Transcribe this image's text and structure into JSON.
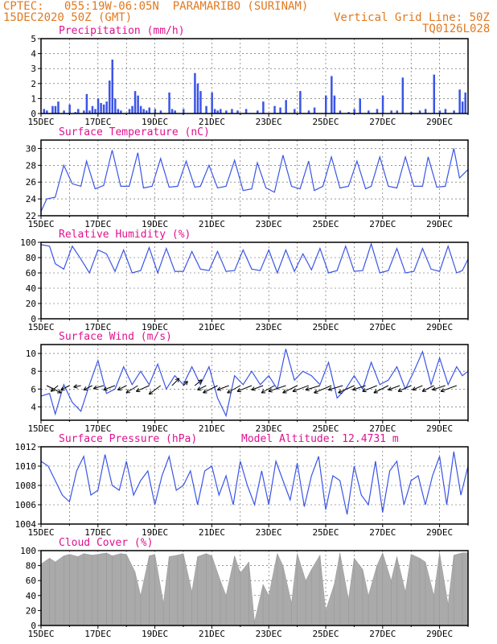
{
  "header": {
    "line1": "CPTEC:   055:19W-06:05N  PARAMARIBO (SURINAM)",
    "line2": "15DEC2020 50Z (GMT)",
    "grid_note": "Vertical Grid Line: 50Z",
    "code": "TQ0126L028"
  },
  "colors": {
    "header": "#e07a22",
    "title": "#e0118f",
    "series": "#3b55e6",
    "cloud": "#aaaaaa",
    "grid": "#555555"
  },
  "chart_data": [
    {
      "type": "bar",
      "title": "Precipitation (mm/h)",
      "x_tick_labels": [
        "15DEC",
        "17DEC",
        "19DEC",
        "21DEC",
        "23DEC",
        "25DEC",
        "27DEC",
        "29DEC"
      ],
      "x_range_days": [
        0,
        15
      ],
      "ylim": [
        0,
        5
      ],
      "yticks": [
        0,
        1,
        2,
        3,
        4,
        5
      ],
      "grid": true,
      "x_days": [
        0.1,
        0.2,
        0.4,
        0.5,
        0.6,
        0.8,
        1.0,
        1.2,
        1.3,
        1.5,
        1.6,
        1.7,
        1.8,
        1.9,
        2.0,
        2.1,
        2.2,
        2.3,
        2.4,
        2.5,
        2.6,
        2.7,
        2.8,
        3.1,
        3.2,
        3.3,
        3.4,
        3.5,
        3.6,
        3.7,
        3.8,
        4.0,
        4.2,
        4.5,
        4.6,
        4.7,
        5.0,
        5.4,
        5.5,
        5.6,
        5.8,
        6.0,
        6.1,
        6.2,
        6.3,
        6.5,
        6.7,
        6.9,
        7.2,
        7.6,
        7.8,
        8.2,
        8.4,
        8.6,
        8.9,
        9.1,
        9.4,
        9.6,
        10.0,
        10.2,
        10.3,
        10.5,
        10.8,
        11.0,
        11.2,
        11.5,
        11.8,
        12.0,
        12.3,
        12.5,
        12.7,
        13.0,
        13.3,
        13.5,
        13.8,
        14.0,
        14.2,
        14.5,
        14.7,
        14.8,
        14.9
      ],
      "values": [
        0.3,
        0.2,
        0.5,
        0.5,
        0.8,
        0.2,
        0.6,
        0.1,
        0.3,
        0.2,
        1.3,
        0.2,
        0.5,
        0.3,
        1.0,
        0.7,
        0.6,
        0.8,
        2.2,
        3.6,
        1.0,
        0.3,
        0.2,
        0.3,
        0.5,
        1.5,
        1.2,
        0.5,
        0.3,
        0.2,
        0.4,
        0.3,
        0.2,
        1.4,
        0.3,
        0.2,
        0.3,
        2.7,
        2.0,
        1.5,
        0.5,
        1.4,
        0.3,
        0.2,
        0.3,
        0.2,
        0.3,
        0.2,
        0.3,
        0.2,
        0.8,
        0.5,
        0.4,
        0.9,
        0.3,
        1.5,
        0.2,
        0.4,
        1.2,
        2.5,
        1.2,
        0.2,
        0.1,
        0.3,
        1.0,
        0.2,
        0.3,
        1.2,
        0.2,
        0.2,
        2.4,
        0.1,
        0.2,
        0.3,
        2.6,
        0.2,
        0.3,
        0.2,
        1.6,
        0.8,
        1.4
      ]
    },
    {
      "type": "line",
      "title": "Surface Temperature (nC)",
      "x_tick_labels": [
        "15DEC",
        "17DEC",
        "19DEC",
        "21DEC",
        "23DEC",
        "25DEC",
        "27DEC",
        "29DEC"
      ],
      "x_range_days": [
        0,
        15
      ],
      "ylim": [
        22,
        31
      ],
      "yticks": [
        22,
        24,
        26,
        28,
        30
      ],
      "grid": true,
      "x_days": [
        0.0,
        0.2,
        0.5,
        0.8,
        1.1,
        1.4,
        1.6,
        1.9,
        2.2,
        2.5,
        2.8,
        3.1,
        3.4,
        3.6,
        3.9,
        4.2,
        4.5,
        4.8,
        5.1,
        5.4,
        5.6,
        5.9,
        6.2,
        6.5,
        6.8,
        7.1,
        7.4,
        7.6,
        7.9,
        8.2,
        8.5,
        8.8,
        9.1,
        9.4,
        9.6,
        9.9,
        10.2,
        10.5,
        10.8,
        11.1,
        11.4,
        11.6,
        11.9,
        12.2,
        12.5,
        12.8,
        13.1,
        13.4,
        13.6,
        13.9,
        14.2,
        14.5,
        14.7,
        15.0
      ],
      "values": [
        22.5,
        24.0,
        24.2,
        28.0,
        25.8,
        25.5,
        28.5,
        25.2,
        25.6,
        29.8,
        25.5,
        25.5,
        29.5,
        25.3,
        25.5,
        28.8,
        25.4,
        25.5,
        28.5,
        25.4,
        25.5,
        28.0,
        25.3,
        25.5,
        28.6,
        25.0,
        25.2,
        28.3,
        25.3,
        24.8,
        29.2,
        25.5,
        25.2,
        28.5,
        25.0,
        25.5,
        29.0,
        25.3,
        25.5,
        28.5,
        25.2,
        25.5,
        29.0,
        25.5,
        25.3,
        29.0,
        25.5,
        25.5,
        29.0,
        25.4,
        25.5,
        30.0,
        26.5,
        27.5
      ]
    },
    {
      "type": "line",
      "title": "Relative Humidity (%)",
      "x_tick_labels": [
        "15DEC",
        "17DEC",
        "19DEC",
        "21DEC",
        "23DEC",
        "25DEC",
        "27DEC",
        "29DEC"
      ],
      "x_range_days": [
        0,
        15
      ],
      "ylim": [
        0,
        100
      ],
      "yticks": [
        0,
        20,
        40,
        60,
        80,
        100
      ],
      "grid": true,
      "x_days": [
        0.0,
        0.3,
        0.5,
        0.8,
        1.1,
        1.4,
        1.7,
        2.0,
        2.3,
        2.6,
        2.9,
        3.2,
        3.5,
        3.8,
        4.1,
        4.4,
        4.7,
        5.0,
        5.3,
        5.6,
        5.9,
        6.2,
        6.5,
        6.8,
        7.1,
        7.4,
        7.7,
        8.0,
        8.3,
        8.6,
        8.9,
        9.2,
        9.5,
        9.8,
        10.1,
        10.4,
        10.7,
        11.0,
        11.3,
        11.6,
        11.9,
        12.2,
        12.5,
        12.8,
        13.1,
        13.4,
        13.7,
        14.0,
        14.3,
        14.6,
        14.8,
        15.0
      ],
      "values": [
        97,
        95,
        72,
        65,
        95,
        78,
        60,
        90,
        85,
        62,
        90,
        60,
        63,
        93,
        60,
        92,
        62,
        62,
        88,
        65,
        63,
        88,
        62,
        63,
        90,
        65,
        63,
        90,
        60,
        90,
        62,
        85,
        64,
        92,
        60,
        63,
        95,
        62,
        63,
        98,
        60,
        63,
        92,
        60,
        62,
        92,
        65,
        62,
        95,
        60,
        63,
        78
      ]
    },
    {
      "type": "line",
      "title": "Surface Wind (m/s)",
      "x_tick_labels": [
        "15DEC",
        "17DEC",
        "19DEC",
        "21DEC",
        "23DEC",
        "25DEC",
        "27DEC",
        "29DEC"
      ],
      "x_range_days": [
        0,
        15
      ],
      "ylim": [
        2.5,
        11
      ],
      "yticks": [
        4,
        6,
        8,
        10
      ],
      "grid": true,
      "x_days": [
        0.0,
        0.3,
        0.5,
        0.8,
        1.1,
        1.4,
        1.7,
        2.0,
        2.3,
        2.6,
        2.9,
        3.2,
        3.5,
        3.8,
        4.1,
        4.4,
        4.7,
        5.0,
        5.3,
        5.6,
        5.9,
        6.2,
        6.5,
        6.8,
        7.1,
        7.4,
        7.7,
        8.0,
        8.3,
        8.6,
        8.9,
        9.2,
        9.5,
        9.8,
        10.1,
        10.4,
        10.7,
        11.0,
        11.3,
        11.6,
        11.9,
        12.2,
        12.5,
        12.8,
        13.1,
        13.4,
        13.7,
        14.0,
        14.3,
        14.6,
        14.8,
        15.0
      ],
      "values": [
        5.2,
        5.5,
        3.2,
        6.5,
        4.5,
        3.5,
        6.5,
        9.2,
        5.5,
        6.0,
        8.5,
        6.5,
        8.0,
        6.5,
        8.8,
        6.0,
        7.5,
        6.5,
        8.5,
        6.5,
        8.5,
        5.0,
        3.0,
        7.5,
        6.5,
        8.0,
        6.5,
        7.5,
        6.0,
        10.5,
        7.0,
        8.0,
        7.5,
        6.5,
        9.0,
        5.0,
        6.0,
        7.5,
        6.0,
        9.0,
        6.5,
        7.0,
        8.5,
        6.0,
        8.0,
        10.2,
        6.5,
        9.5,
        6.5,
        8.5,
        7.5,
        8.0
      ],
      "wind_vectors": [
        {
          "day": 0.2,
          "u": 1.0,
          "v": -0.5
        },
        {
          "day": 0.6,
          "u": -0.5,
          "v": -0.4
        },
        {
          "day": 1.0,
          "u": -0.6,
          "v": -0.3
        },
        {
          "day": 1.4,
          "u": -0.5,
          "v": -0.1
        },
        {
          "day": 1.8,
          "u": -0.6,
          "v": -0.3
        },
        {
          "day": 2.2,
          "u": -0.7,
          "v": -0.2
        },
        {
          "day": 2.6,
          "u": -0.8,
          "v": -0.3
        },
        {
          "day": 3.0,
          "u": -0.6,
          "v": -0.3
        },
        {
          "day": 3.4,
          "u": -0.8,
          "v": -0.5
        },
        {
          "day": 3.8,
          "u": -0.9,
          "v": -0.4
        },
        {
          "day": 4.2,
          "u": -0.8,
          "v": -0.6
        },
        {
          "day": 4.6,
          "u": 0.5,
          "v": 0.5
        },
        {
          "day": 5.0,
          "u": 0.3,
          "v": 0.3
        },
        {
          "day": 5.4,
          "u": 0.5,
          "v": 0.4
        },
        {
          "day": 5.8,
          "u": -0.6,
          "v": -0.3
        },
        {
          "day": 6.2,
          "u": -1.0,
          "v": -0.5
        },
        {
          "day": 6.6,
          "u": -0.8,
          "v": -0.3
        },
        {
          "day": 7.0,
          "u": -0.9,
          "v": -0.5
        },
        {
          "day": 7.4,
          "u": -1.0,
          "v": -0.4
        },
        {
          "day": 7.8,
          "u": -0.8,
          "v": -0.3
        },
        {
          "day": 8.2,
          "u": -0.9,
          "v": -0.5
        },
        {
          "day": 8.6,
          "u": -1.2,
          "v": -0.4
        },
        {
          "day": 9.0,
          "u": -1.0,
          "v": -0.5
        },
        {
          "day": 9.4,
          "u": -1.1,
          "v": -0.4
        },
        {
          "day": 9.8,
          "u": -1.0,
          "v": -0.3
        },
        {
          "day": 10.2,
          "u": -1.2,
          "v": -0.5
        },
        {
          "day": 10.6,
          "u": -1.0,
          "v": -0.3
        },
        {
          "day": 11.0,
          "u": -1.1,
          "v": -0.5
        },
        {
          "day": 11.4,
          "u": -0.9,
          "v": -0.3
        },
        {
          "day": 11.8,
          "u": -1.0,
          "v": -0.4
        },
        {
          "day": 12.2,
          "u": -1.0,
          "v": -0.5
        },
        {
          "day": 12.6,
          "u": -0.8,
          "v": -0.3
        },
        {
          "day": 13.0,
          "u": -0.9,
          "v": -0.4
        },
        {
          "day": 13.4,
          "u": -0.7,
          "v": -0.3
        },
        {
          "day": 13.8,
          "u": -0.8,
          "v": -0.4
        },
        {
          "day": 14.2,
          "u": -0.9,
          "v": -0.3
        },
        {
          "day": 14.6,
          "u": -1.1,
          "v": -0.4
        }
      ]
    },
    {
      "type": "line",
      "title": "Surface Pressure (hPa)",
      "annotation": "Model Altitude: 12.4731 m",
      "x_tick_labels": [
        "15DEC",
        "17DEC",
        "19DEC",
        "21DEC",
        "23DEC",
        "25DEC",
        "27DEC",
        "29DEC"
      ],
      "x_range_days": [
        0,
        15
      ],
      "ylim": [
        1004,
        1012
      ],
      "yticks": [
        1004,
        1006,
        1008,
        1010,
        1012
      ],
      "grid": true,
      "x_days": [
        0.0,
        0.25,
        0.5,
        0.75,
        1.0,
        1.25,
        1.5,
        1.75,
        2.0,
        2.25,
        2.5,
        2.75,
        3.0,
        3.25,
        3.5,
        3.75,
        4.0,
        4.25,
        4.5,
        4.75,
        5.0,
        5.25,
        5.5,
        5.75,
        6.0,
        6.25,
        6.5,
        6.75,
        7.0,
        7.25,
        7.5,
        7.75,
        8.0,
        8.25,
        8.5,
        8.75,
        9.0,
        9.25,
        9.5,
        9.75,
        10.0,
        10.25,
        10.5,
        10.75,
        11.0,
        11.25,
        11.5,
        11.75,
        12.0,
        12.25,
        12.5,
        12.75,
        13.0,
        13.25,
        13.5,
        13.75,
        14.0,
        14.25,
        14.5,
        14.75,
        15.0
      ],
      "values": [
        1010.5,
        1010.0,
        1008.5,
        1007.0,
        1006.3,
        1009.5,
        1011.0,
        1007.0,
        1007.5,
        1011.2,
        1008.0,
        1007.5,
        1010.5,
        1007.0,
        1008.5,
        1009.5,
        1006.0,
        1009.0,
        1011.0,
        1007.5,
        1008.0,
        1009.5,
        1006.0,
        1009.5,
        1010.0,
        1007.0,
        1009.0,
        1006.0,
        1010.5,
        1008.0,
        1006.0,
        1009.5,
        1006.0,
        1010.5,
        1008.5,
        1006.5,
        1010.3,
        1005.8,
        1009.0,
        1011.0,
        1005.5,
        1009.0,
        1008.5,
        1005.0,
        1010.0,
        1007.0,
        1006.0,
        1010.5,
        1005.2,
        1009.5,
        1010.5,
        1006.0,
        1008.5,
        1009.0,
        1006.0,
        1009.0,
        1011.0,
        1006.0,
        1011.5,
        1007.0,
        1010.0
      ]
    },
    {
      "type": "area",
      "title": "Cloud Cover (%)",
      "x_tick_labels": [
        "15DEC",
        "17DEC",
        "19DEC",
        "21DEC",
        "23DEC",
        "25DEC",
        "27DEC",
        "29DEC"
      ],
      "x_range_days": [
        0,
        15
      ],
      "ylim": [
        0,
        100
      ],
      "yticks": [
        0,
        20,
        40,
        60,
        80,
        100
      ],
      "grid": true,
      "x_days": [
        0.0,
        0.3,
        0.5,
        0.8,
        1.0,
        1.3,
        1.5,
        1.8,
        2.0,
        2.3,
        2.5,
        2.8,
        3.0,
        3.3,
        3.5,
        3.8,
        4.0,
        4.3,
        4.5,
        4.8,
        5.0,
        5.3,
        5.5,
        5.8,
        6.0,
        6.3,
        6.5,
        6.8,
        7.0,
        7.3,
        7.5,
        7.8,
        8.0,
        8.3,
        8.5,
        8.8,
        9.0,
        9.3,
        9.5,
        9.8,
        10.0,
        10.3,
        10.5,
        10.8,
        11.0,
        11.3,
        11.5,
        11.8,
        12.0,
        12.3,
        12.5,
        12.8,
        13.0,
        13.3,
        13.5,
        13.8,
        14.0,
        14.3,
        14.5,
        14.8,
        15.0
      ],
      "values": [
        82,
        90,
        85,
        93,
        95,
        92,
        96,
        94,
        95,
        97,
        93,
        96,
        95,
        72,
        40,
        93,
        95,
        30,
        92,
        94,
        96,
        45,
        92,
        96,
        93,
        60,
        40,
        93,
        70,
        85,
        5,
        55,
        40,
        96,
        80,
        30,
        96,
        60,
        75,
        94,
        20,
        55,
        97,
        35,
        90,
        75,
        40,
        80,
        97,
        60,
        92,
        45,
        95,
        90,
        85,
        40,
        97,
        28,
        94,
        97,
        97
      ]
    }
  ]
}
